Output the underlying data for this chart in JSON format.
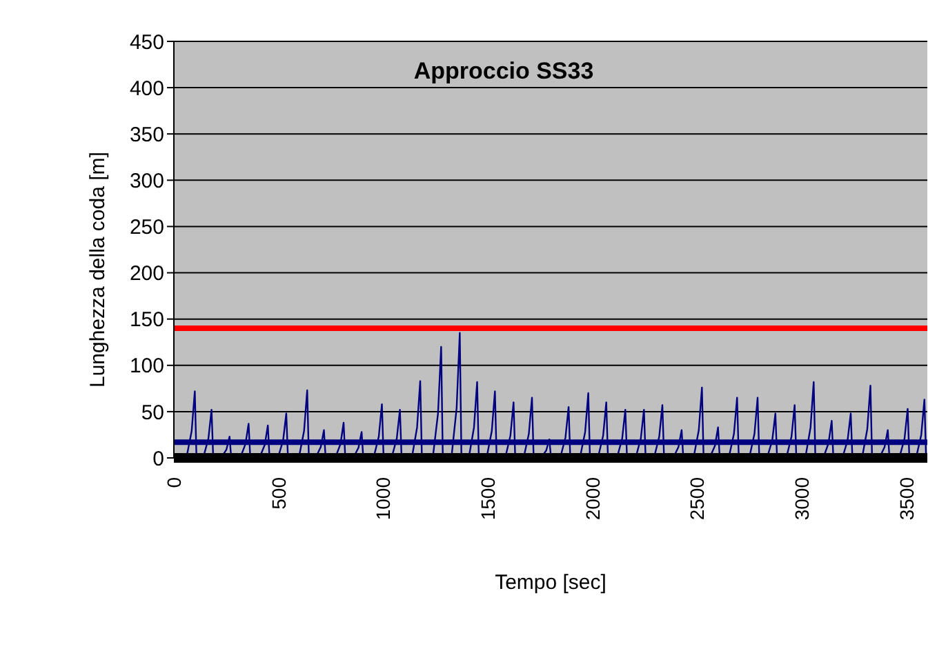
{
  "chart_data": {
    "type": "line",
    "title": "Approccio SS33",
    "xlabel": "Tempo [sec]",
    "ylabel": "Lunghezza  della coda [m]",
    "xlim": [
      0,
      3600
    ],
    "xticks": [
      0,
      500,
      1000,
      1500,
      2000,
      2500,
      3000,
      3500
    ],
    "ylim": [
      0,
      450
    ],
    "yticks": [
      0,
      50,
      100,
      150,
      200,
      250,
      300,
      350,
      400,
      450
    ],
    "grid": "y",
    "legend": false,
    "marker": "none",
    "line_style": "solid",
    "series": [
      {
        "color": "#000080",
        "x": [
          0,
          60,
          85,
          100,
          108,
          140,
          165,
          180,
          188,
          226,
          251,
          266,
          274,
          317,
          342,
          357,
          365,
          409,
          434,
          449,
          457,
          497,
          522,
          537,
          545,
          597,
          622,
          637,
          645,
          677,
          702,
          717,
          725,
          771,
          796,
          811,
          819,
          857,
          882,
          897,
          905,
          954,
          979,
          994,
          1002,
          1040,
          1065,
          1080,
          1088,
          1137,
          1162,
          1177,
          1185,
          1237,
          1262,
          1277,
          1285,
          1326,
          1351,
          1366,
          1374,
          1409,
          1434,
          1449,
          1457,
          1494,
          1519,
          1534,
          1542,
          1583,
          1608,
          1623,
          1631,
          1671,
          1696,
          1711,
          1719,
          1754,
          1779,
          1794,
          1802,
          1846,
          1871,
          1886,
          1894,
          1940,
          1965,
          1980,
          1988,
          2026,
          2051,
          2066,
          2074,
          2117,
          2142,
          2157,
          2165,
          2206,
          2231,
          2246,
          2254,
          2294,
          2319,
          2334,
          2342,
          2386,
          2411,
          2426,
          2434,
          2483,
          2508,
          2523,
          2531,
          2560,
          2585,
          2600,
          2608,
          2651,
          2676,
          2691,
          2699,
          2749,
          2774,
          2789,
          2797,
          2834,
          2859,
          2874,
          2882,
          2926,
          2951,
          2966,
          2974,
          3017,
          3042,
          3057,
          3065,
          3103,
          3128,
          3143,
          3151,
          3194,
          3219,
          3234,
          3242,
          3288,
          3313,
          3328,
          3336,
          3371,
          3396,
          3411,
          3419,
          3466,
          3491,
          3506,
          3514,
          3546,
          3571,
          3586,
          3594
        ],
        "values": [
          0,
          0,
          29,
          72,
          0,
          0,
          21,
          52,
          0,
          0,
          9,
          23,
          0,
          0,
          15,
          37,
          0,
          0,
          14,
          35,
          0,
          0,
          19,
          48,
          0,
          0,
          29,
          73,
          0,
          0,
          12,
          30,
          0,
          0,
          15,
          38,
          0,
          0,
          11,
          28,
          0,
          0,
          23,
          58,
          0,
          0,
          21,
          52,
          0,
          0,
          33,
          83,
          0,
          0,
          48,
          120,
          0,
          0,
          54,
          135,
          0,
          0,
          33,
          82,
          0,
          0,
          29,
          72,
          0,
          0,
          24,
          60,
          0,
          0,
          26,
          65,
          0,
          0,
          8,
          20,
          0,
          0,
          22,
          55,
          0,
          0,
          28,
          70,
          0,
          0,
          24,
          60,
          0,
          0,
          21,
          52,
          0,
          0,
          21,
          52,
          0,
          0,
          23,
          57,
          0,
          0,
          12,
          30,
          0,
          0,
          30,
          76,
          0,
          0,
          13,
          33,
          0,
          0,
          26,
          65,
          0,
          0,
          26,
          65,
          0,
          0,
          19,
          48,
          0,
          0,
          23,
          57,
          0,
          0,
          33,
          82,
          0,
          0,
          16,
          40,
          0,
          0,
          19,
          48,
          0,
          0,
          31,
          78,
          0,
          0,
          12,
          30,
          0,
          0,
          21,
          53,
          0,
          0,
          25,
          63,
          0
        ]
      }
    ],
    "ref_lines": [
      {
        "axis": "y",
        "value": 140,
        "color": "#ff0000"
      },
      {
        "axis": "y",
        "value": 17,
        "color": "#000080"
      }
    ]
  }
}
